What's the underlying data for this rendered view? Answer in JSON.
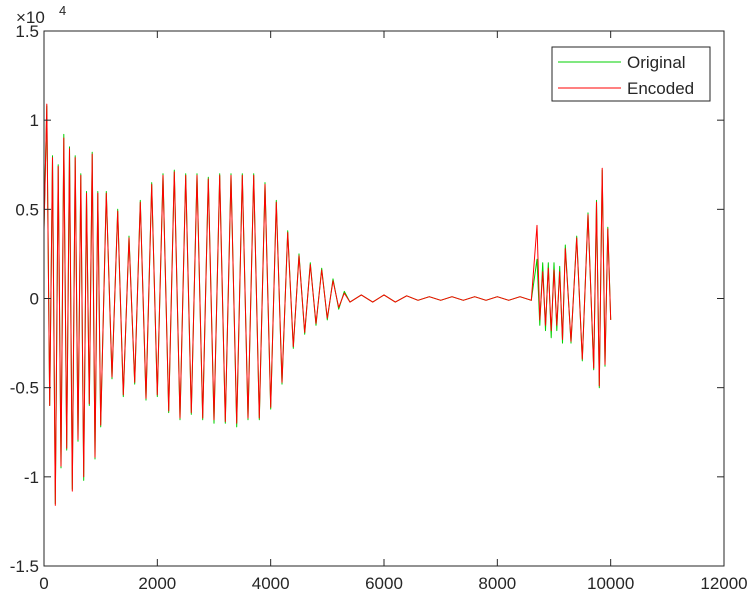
{
  "chart_data": {
    "type": "line",
    "title": "",
    "xlabel": "",
    "ylabel": "",
    "xlim": [
      0,
      12000
    ],
    "ylim": [
      -15000,
      15000
    ],
    "y_exponent_label": "×10",
    "y_exponent_power": "4",
    "x_ticks": [
      {
        "value": 0,
        "label": "0"
      },
      {
        "value": 2000,
        "label": "2000"
      },
      {
        "value": 4000,
        "label": "4000"
      },
      {
        "value": 6000,
        "label": "6000"
      },
      {
        "value": 8000,
        "label": "8000"
      },
      {
        "value": 10000,
        "label": "10000"
      },
      {
        "value": 12000,
        "label": "12000"
      }
    ],
    "y_ticks": [
      {
        "value": -15000,
        "label": "-1.5"
      },
      {
        "value": -10000,
        "label": "-1"
      },
      {
        "value": -5000,
        "label": "-0.5"
      },
      {
        "value": 0,
        "label": "0"
      },
      {
        "value": 5000,
        "label": "0.5"
      },
      {
        "value": 10000,
        "label": "1"
      },
      {
        "value": 15000,
        "label": "1.5"
      }
    ],
    "grid": false,
    "legend": "top-right",
    "series": [
      {
        "name": "Original",
        "color": "#00d200",
        "x": [
          0,
          50,
          100,
          150,
          200,
          250,
          300,
          350,
          400,
          450,
          500,
          550,
          600,
          650,
          700,
          750,
          800,
          850,
          900,
          950,
          1000,
          1100,
          1200,
          1300,
          1400,
          1500,
          1600,
          1700,
          1800,
          1900,
          2000,
          2100,
          2200,
          2300,
          2400,
          2500,
          2600,
          2700,
          2800,
          2900,
          3000,
          3100,
          3200,
          3300,
          3400,
          3500,
          3600,
          3700,
          3800,
          3900,
          4000,
          4100,
          4200,
          4300,
          4400,
          4500,
          4600,
          4700,
          4800,
          4900,
          5000,
          5100,
          5200,
          5300,
          5400,
          5600,
          5800,
          6000,
          6200,
          6400,
          6600,
          6800,
          7000,
          7200,
          7400,
          7600,
          7800,
          8000,
          8200,
          8400,
          8600,
          8700,
          8750,
          8800,
          8850,
          8900,
          8950,
          9000,
          9050,
          9100,
          9150,
          9200,
          9300,
          9400,
          9500,
          9600,
          9700,
          9750,
          9800,
          9850,
          9900,
          9950,
          10000
        ],
        "y": [
          4000,
          10800,
          -6000,
          8000,
          -11500,
          7500,
          -9500,
          9200,
          -8500,
          8500,
          -10700,
          8000,
          -8000,
          7000,
          -10200,
          6000,
          -6000,
          8200,
          -9000,
          6000,
          -7200,
          6000,
          -4500,
          5000,
          -5500,
          3500,
          -4800,
          5500,
          -5700,
          6500,
          -5500,
          7000,
          -6400,
          7200,
          -6800,
          7000,
          -6500,
          7000,
          -6800,
          6800,
          -7000,
          7000,
          -7000,
          7000,
          -7200,
          7000,
          -6800,
          7000,
          -6800,
          6500,
          -6200,
          5500,
          -4800,
          3800,
          -2800,
          2500,
          -2000,
          2000,
          -1500,
          1700,
          -1200,
          1100,
          -600,
          400,
          -200,
          200,
          -200,
          200,
          -200,
          150,
          -100,
          100,
          -100,
          100,
          -100,
          100,
          -100,
          100,
          -100,
          100,
          -100,
          2200,
          -1500,
          2000,
          -1800,
          2000,
          -2200,
          2000,
          -1800,
          1800,
          -2500,
          3000,
          -2500,
          3500,
          -3500,
          4800,
          -4000,
          5500,
          -5000,
          7200,
          -3800,
          4000,
          -1200
        ]
      },
      {
        "name": "Encoded",
        "color": "#ff0000",
        "x": [
          0,
          50,
          100,
          150,
          200,
          250,
          300,
          350,
          400,
          450,
          500,
          550,
          600,
          650,
          700,
          750,
          800,
          850,
          900,
          950,
          1000,
          1100,
          1200,
          1300,
          1400,
          1500,
          1600,
          1700,
          1800,
          1900,
          2000,
          2100,
          2200,
          2300,
          2400,
          2500,
          2600,
          2700,
          2800,
          2900,
          3000,
          3100,
          3200,
          3300,
          3400,
          3500,
          3600,
          3700,
          3800,
          3900,
          4000,
          4100,
          4200,
          4300,
          4400,
          4500,
          4600,
          4700,
          4800,
          4900,
          5000,
          5100,
          5200,
          5300,
          5400,
          5600,
          5800,
          6000,
          6200,
          6400,
          6600,
          6800,
          7000,
          7200,
          7400,
          7600,
          7800,
          8000,
          8200,
          8400,
          8600,
          8700,
          8750,
          8800,
          8850,
          8900,
          8950,
          9000,
          9050,
          9100,
          9150,
          9200,
          9300,
          9400,
          9500,
          9600,
          9700,
          9750,
          9800,
          9850,
          9900,
          9950,
          10000
        ],
        "y": [
          3800,
          10900,
          -6000,
          7900,
          -11600,
          7400,
          -9400,
          9000,
          -8400,
          8400,
          -10800,
          7900,
          -7900,
          6900,
          -10000,
          5900,
          -5900,
          8100,
          -8900,
          5900,
          -7100,
          5900,
          -4400,
          4900,
          -5400,
          3400,
          -4700,
          5400,
          -5600,
          6400,
          -5400,
          6900,
          -6300,
          7100,
          -6700,
          6900,
          -6400,
          6900,
          -6700,
          6700,
          -6800,
          6900,
          -6900,
          6900,
          -7000,
          6900,
          -6700,
          6900,
          -6700,
          6400,
          -6100,
          5400,
          -4700,
          3700,
          -2700,
          2400,
          -1900,
          1900,
          -1400,
          1600,
          -1100,
          1000,
          -500,
          300,
          -200,
          200,
          -200,
          200,
          -200,
          150,
          -100,
          100,
          -100,
          100,
          -100,
          100,
          -100,
          100,
          -100,
          100,
          -100,
          4100,
          -1200,
          1500,
          -1500,
          1700,
          -1800,
          1600,
          -1500,
          1500,
          -2300,
          2800,
          -2400,
          3400,
          -3400,
          4700,
          -3900,
          5400,
          -4900,
          7300,
          -3700,
          3900,
          -1200
        ]
      }
    ]
  }
}
